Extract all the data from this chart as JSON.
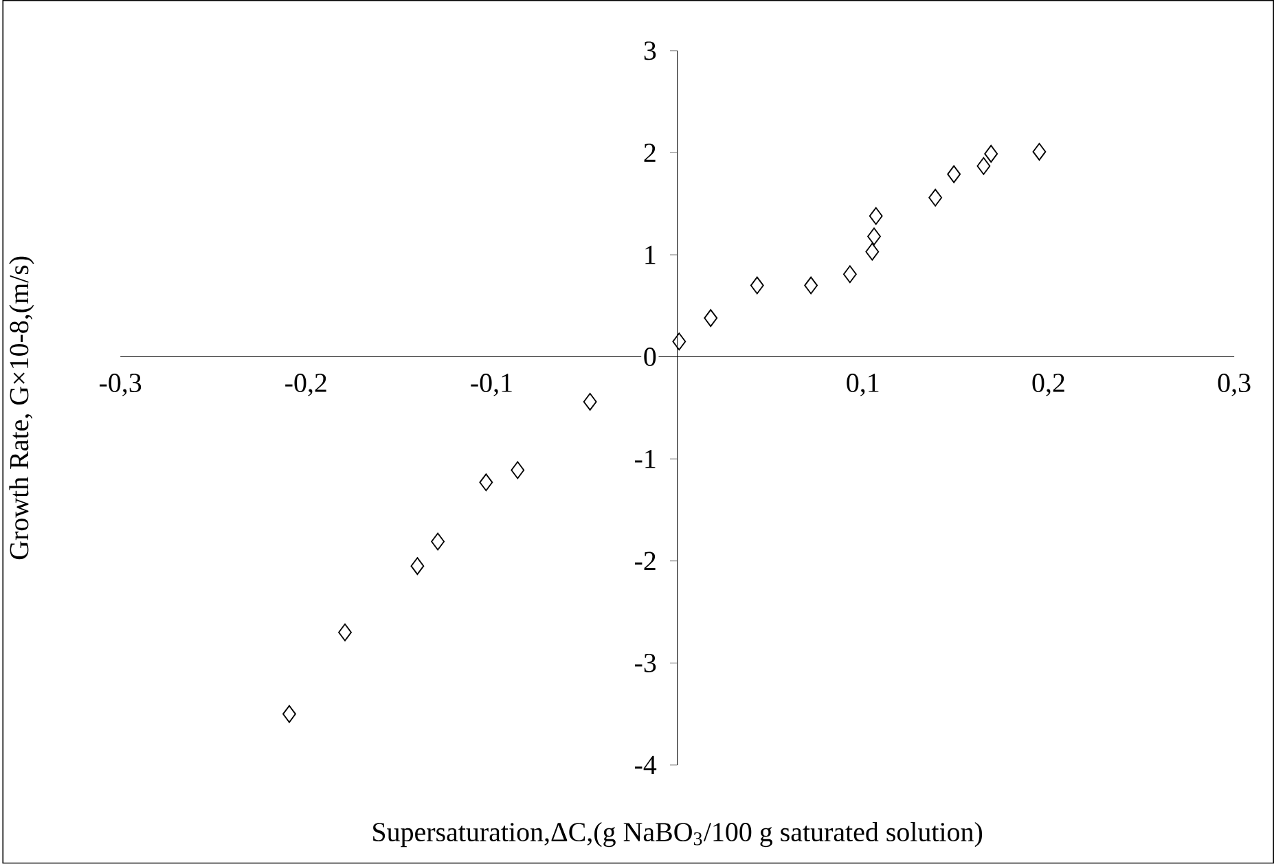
{
  "chart_data": {
    "type": "scatter",
    "xlabel": "Supersaturation,ΔC,(g NaBO$_{3}$/100 g saturated solution)",
    "ylabel": "Growth Rate, G×10-8,(m/s)",
    "xlim": [
      -0.3,
      0.3
    ],
    "ylim": [
      -4,
      3
    ],
    "xticks": [
      {
        "value": -0.3,
        "label": "-0,3"
      },
      {
        "value": -0.2,
        "label": "-0,2"
      },
      {
        "value": -0.1,
        "label": "-0,1"
      },
      {
        "value": 0,
        "label": null
      },
      {
        "value": 0.1,
        "label": "0,1"
      },
      {
        "value": 0.2,
        "label": "0,2"
      },
      {
        "value": 0.3,
        "label": "0,3"
      }
    ],
    "yticks": [
      -4,
      -3,
      -2,
      -1,
      0,
      1,
      2,
      3
    ],
    "marker": "diamond",
    "grid": false,
    "series": [
      {
        "color": "#000000",
        "x": [
          -0.209,
          -0.179,
          -0.14,
          -0.129,
          -0.103,
          -0.086,
          -0.047,
          0.001,
          0.018,
          0.043,
          0.072,
          0.093,
          0.105,
          0.106,
          0.107,
          0.139,
          0.149,
          0.165,
          0.169,
          0.195
        ],
        "values": [
          -3.5,
          -2.7,
          -2.05,
          -1.81,
          -1.23,
          -1.11,
          -0.44,
          0.15,
          0.38,
          0.7,
          0.7,
          0.81,
          1.03,
          1.18,
          1.38,
          1.56,
          1.79,
          1.87,
          1.99,
          2.01
        ]
      }
    ]
  }
}
